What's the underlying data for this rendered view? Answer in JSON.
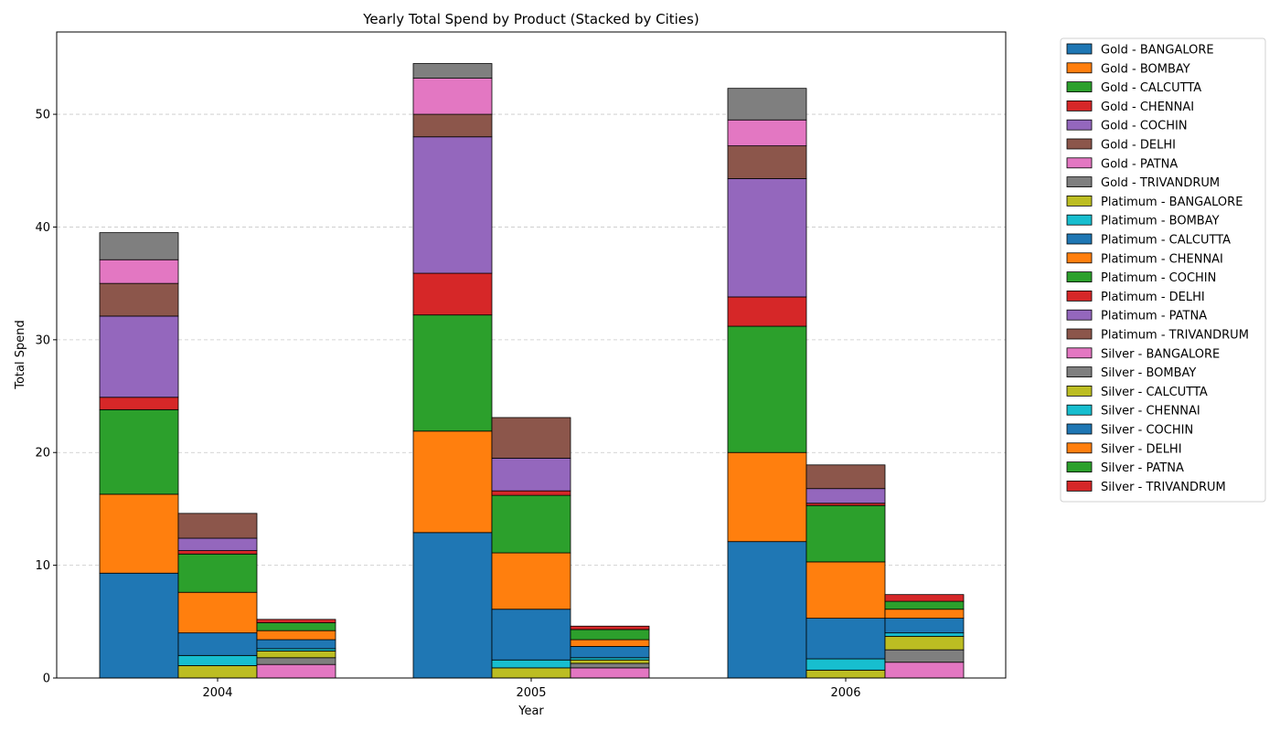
{
  "chart_data": {
    "type": "bar",
    "title": "Yearly Total Spend by Product (Stacked by Cities)",
    "xlabel": "Year",
    "ylabel": "Total Spend",
    "ylim": [
      0,
      57.3
    ],
    "yticks": [
      0,
      10,
      20,
      30,
      40,
      50
    ],
    "grid": "y dashed",
    "legend_position": "outside right",
    "categories": [
      "2004",
      "2005",
      "2006"
    ],
    "products": [
      "Gold",
      "Platimum",
      "Silver"
    ],
    "cities": [
      "BANGALORE",
      "BOMBAY",
      "CALCUTTA",
      "CHENNAI",
      "COCHIN",
      "DELHI",
      "PATNA",
      "TRIVANDRUM"
    ],
    "series": [
      {
        "name": "Gold - BANGALORE",
        "product": "Gold",
        "city": "BANGALORE",
        "color": "#1f77b4",
        "values": [
          9.3,
          12.9,
          12.1
        ]
      },
      {
        "name": "Gold - BOMBAY",
        "product": "Gold",
        "city": "BOMBAY",
        "color": "#ff7f0e",
        "values": [
          7.0,
          9.0,
          7.9
        ]
      },
      {
        "name": "Gold - CALCUTTA",
        "product": "Gold",
        "city": "CALCUTTA",
        "color": "#2ca02c",
        "values": [
          7.5,
          10.3,
          11.2
        ]
      },
      {
        "name": "Gold - CHENNAI",
        "product": "Gold",
        "city": "CHENNAI",
        "color": "#d62728",
        "values": [
          1.1,
          3.7,
          2.6
        ]
      },
      {
        "name": "Gold - COCHIN",
        "product": "Gold",
        "city": "COCHIN",
        "color": "#9467bd",
        "values": [
          7.2,
          12.1,
          10.5
        ]
      },
      {
        "name": "Gold - DELHI",
        "product": "Gold",
        "city": "DELHI",
        "color": "#8c564b",
        "values": [
          2.9,
          2.0,
          2.9
        ]
      },
      {
        "name": "Gold - PATNA",
        "product": "Gold",
        "city": "PATNA",
        "color": "#e377c2",
        "values": [
          2.1,
          3.2,
          2.3
        ]
      },
      {
        "name": "Gold - TRIVANDRUM",
        "product": "Gold",
        "city": "TRIVANDRUM",
        "color": "#7f7f7f",
        "values": [
          2.4,
          1.3,
          2.8
        ]
      },
      {
        "name": "Platimum - BANGALORE",
        "product": "Platimum",
        "city": "BANGALORE",
        "color": "#bcbd22",
        "values": [
          1.1,
          0.9,
          0.7
        ]
      },
      {
        "name": "Platimum - BOMBAY",
        "product": "Platimum",
        "city": "BOMBAY",
        "color": "#17becf",
        "values": [
          0.9,
          0.7,
          1.0
        ]
      },
      {
        "name": "Platimum - CALCUTTA",
        "product": "Platimum",
        "city": "CALCUTTA",
        "color": "#1f77b4",
        "values": [
          2.0,
          4.5,
          3.6
        ]
      },
      {
        "name": "Platimum - CHENNAI",
        "product": "Platimum",
        "city": "CHENNAI",
        "color": "#ff7f0e",
        "values": [
          3.6,
          5.0,
          5.0
        ]
      },
      {
        "name": "Platimum - COCHIN",
        "product": "Platimum",
        "city": "COCHIN",
        "color": "#2ca02c",
        "values": [
          3.4,
          5.1,
          5.0
        ]
      },
      {
        "name": "Platimum - DELHI",
        "product": "Platimum",
        "city": "DELHI",
        "color": "#d62728",
        "values": [
          0.3,
          0.4,
          0.2
        ]
      },
      {
        "name": "Platimum - PATNA",
        "product": "Platimum",
        "city": "PATNA",
        "color": "#9467bd",
        "values": [
          1.1,
          2.9,
          1.3
        ]
      },
      {
        "name": "Platimum - TRIVANDRUM",
        "product": "Platimum",
        "city": "TRIVANDRUM",
        "color": "#8c564b",
        "values": [
          2.2,
          3.6,
          2.1
        ]
      },
      {
        "name": "Silver - BANGALORE",
        "product": "Silver",
        "city": "BANGALORE",
        "color": "#e377c2",
        "values": [
          1.2,
          0.9,
          1.4
        ]
      },
      {
        "name": "Silver - BOMBAY",
        "product": "Silver",
        "city": "BOMBAY",
        "color": "#7f7f7f",
        "values": [
          0.6,
          0.4,
          1.1
        ]
      },
      {
        "name": "Silver - CALCUTTA",
        "product": "Silver",
        "city": "CALCUTTA",
        "color": "#bcbd22",
        "values": [
          0.6,
          0.3,
          1.2
        ]
      },
      {
        "name": "Silver - CHENNAI",
        "product": "Silver",
        "city": "CHENNAI",
        "color": "#17becf",
        "values": [
          0.2,
          0.2,
          0.3
        ]
      },
      {
        "name": "Silver - COCHIN",
        "product": "Silver",
        "city": "COCHIN",
        "color": "#1f77b4",
        "values": [
          0.8,
          1.0,
          1.3
        ]
      },
      {
        "name": "Silver - DELHI",
        "product": "Silver",
        "city": "DELHI",
        "color": "#ff7f0e",
        "values": [
          0.8,
          0.6,
          0.8
        ]
      },
      {
        "name": "Silver - PATNA",
        "product": "Silver",
        "city": "PATNA",
        "color": "#2ca02c",
        "values": [
          0.7,
          0.9,
          0.7
        ]
      },
      {
        "name": "Silver - TRIVANDRUM",
        "product": "Silver",
        "city": "TRIVANDRUM",
        "color": "#d62728",
        "values": [
          0.3,
          0.3,
          0.6
        ]
      }
    ]
  }
}
